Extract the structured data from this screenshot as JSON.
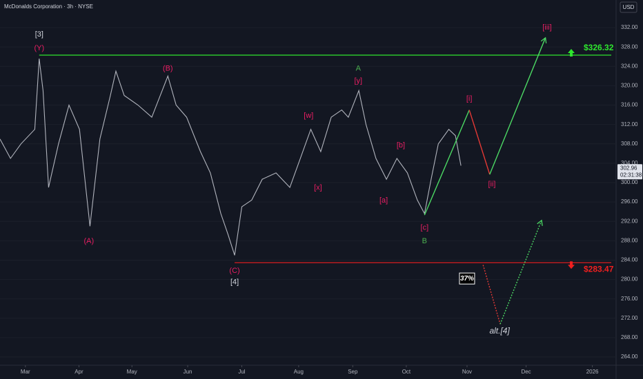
{
  "chart_data": {
    "type": "line",
    "title": "McDonalds Corporation · 3h · NYSE",
    "currency": "USD",
    "xlim": [
      2.54,
      13.7
    ],
    "xticks": [
      {
        "value": 3.0,
        "label": "Mar"
      },
      {
        "value": 3.97,
        "label": "Apr"
      },
      {
        "value": 4.93,
        "label": "May"
      },
      {
        "value": 5.94,
        "label": "Jun"
      },
      {
        "value": 6.92,
        "label": "Jul"
      },
      {
        "value": 7.95,
        "label": "Aug"
      },
      {
        "value": 8.93,
        "label": "Sep"
      },
      {
        "value": 9.9,
        "label": "Oct"
      },
      {
        "value": 11.0,
        "label": "Nov"
      },
      {
        "value": 12.07,
        "label": "Dec"
      },
      {
        "value": 13.27,
        "label": "2026"
      }
    ],
    "ylim": [
      262.3,
      337.7
    ],
    "yticks": [
      {
        "value": 264,
        "label": "264.00"
      },
      {
        "value": 268,
        "label": "268.00"
      },
      {
        "value": 272,
        "label": "272.00"
      },
      {
        "value": 276,
        "label": "276.00"
      },
      {
        "value": 280,
        "label": "280.00"
      },
      {
        "value": 284,
        "label": "284.00"
      },
      {
        "value": 288,
        "label": "288.00"
      },
      {
        "value": 292,
        "label": "292.00"
      },
      {
        "value": 296,
        "label": "296.00"
      },
      {
        "value": 300,
        "label": "300.00"
      },
      {
        "value": 304,
        "label": "304.00"
      },
      {
        "value": 308,
        "label": "308.00"
      },
      {
        "value": 312,
        "label": "312.00"
      },
      {
        "value": 316,
        "label": "316.00"
      },
      {
        "value": 320,
        "label": "320.00"
      },
      {
        "value": 324,
        "label": "324.00"
      },
      {
        "value": 328,
        "label": "328.00"
      },
      {
        "value": 332,
        "label": "332.00"
      }
    ],
    "series": [
      {
        "color": "#b2b5be",
        "style": "solid",
        "arrow": false,
        "x": [
          2.54,
          2.73,
          2.92,
          3.17,
          3.25,
          3.32,
          3.42,
          3.6,
          3.79,
          3.98,
          4.17,
          4.35,
          4.54,
          4.64,
          4.79,
          5.04,
          5.29,
          5.58,
          5.73,
          5.92,
          6.17,
          6.35,
          6.54,
          6.67,
          6.79,
          6.92,
          7.1,
          7.29,
          7.54,
          7.79,
          7.98,
          8.17,
          8.35,
          8.54,
          8.73,
          8.85,
          9.04,
          9.17,
          9.35,
          9.54,
          9.73,
          9.92,
          10.1,
          10.23,
          10.35,
          10.48,
          10.67,
          10.79,
          10.89
        ],
        "values": [
          309,
          305,
          308,
          311,
          325.6,
          319,
          299,
          308,
          316,
          311,
          291,
          309,
          318,
          323,
          318,
          316,
          313.5,
          322,
          316,
          313.5,
          306.4,
          302,
          293.6,
          289.3,
          285,
          295,
          296.4,
          300.7,
          302,
          299,
          305,
          311,
          306.4,
          313.5,
          315,
          313.5,
          319,
          312,
          305,
          300.7,
          305,
          302,
          296.4,
          293.6,
          300.7,
          308,
          311,
          309.7,
          303.5
        ]
      },
      {
        "color": "#4cd964",
        "style": "solid",
        "arrow": false,
        "x": [
          10.23,
          11.04
        ],
        "values": [
          293.3,
          315
        ]
      },
      {
        "color": "#e53935",
        "style": "solid",
        "arrow": false,
        "x": [
          11.04,
          11.41
        ],
        "values": [
          315,
          301.7
        ]
      },
      {
        "color": "#4cd964",
        "style": "solid",
        "arrow": true,
        "x": [
          11.41,
          12.42
        ],
        "values": [
          301.7,
          329.9
        ]
      },
      {
        "color": "#e53935",
        "style": "dotted",
        "arrow": false,
        "x": [
          11.29,
          11.6
        ],
        "values": [
          283,
          270.8
        ]
      },
      {
        "color": "#4cd964",
        "style": "dotted",
        "arrow": true,
        "x": [
          11.6,
          12.35
        ],
        "values": [
          270.8,
          292.2
        ]
      }
    ],
    "levels": [
      {
        "value": 326.32,
        "label": "$326.32",
        "color": "#2ee62e",
        "from": 3.25
      },
      {
        "value": 283.47,
        "label": "$283.47",
        "color": "#f01f1f",
        "from": 6.79
      }
    ],
    "annotations": [
      {
        "text": "[3]",
        "color": "#d1d4dc",
        "x": 3.25,
        "y": 330.6
      },
      {
        "text": "(Y)",
        "color": "#e91e63",
        "x": 3.25,
        "y": 327.7
      },
      {
        "text": "(B)",
        "color": "#e91e63",
        "x": 5.58,
        "y": 323.5
      },
      {
        "text": "(A)",
        "color": "#e91e63",
        "x": 4.15,
        "y": 287.9
      },
      {
        "text": "(C)",
        "color": "#e91e63",
        "x": 6.79,
        "y": 281.8
      },
      {
        "text": "[4]",
        "color": "#d1d4dc",
        "x": 6.79,
        "y": 279.4
      },
      {
        "text": "A",
        "color": "#4caf50",
        "x": 9.03,
        "y": 323.5
      },
      {
        "text": "[y]",
        "color": "#e91e63",
        "x": 9.03,
        "y": 321
      },
      {
        "text": "[w]",
        "color": "#e91e63",
        "x": 8.13,
        "y": 313.8
      },
      {
        "text": "[x]",
        "color": "#e91e63",
        "x": 8.3,
        "y": 298.9
      },
      {
        "text": "[a]",
        "color": "#e91e63",
        "x": 9.49,
        "y": 296.3
      },
      {
        "text": "[b]",
        "color": "#e91e63",
        "x": 9.8,
        "y": 307.7
      },
      {
        "text": "[c]",
        "color": "#e91e63",
        "x": 10.23,
        "y": 290.7
      },
      {
        "text": "B",
        "color": "#4caf50",
        "x": 10.23,
        "y": 287.9
      },
      {
        "text": "[i]",
        "color": "#e91e63",
        "x": 11.04,
        "y": 317.3
      },
      {
        "text": "[ii]",
        "color": "#e91e63",
        "x": 11.45,
        "y": 299.6
      },
      {
        "text": "[iii]",
        "color": "#e91e63",
        "x": 12.45,
        "y": 332
      },
      {
        "text": "alt.[4]",
        "color": "#d1d4dc",
        "x": 11.59,
        "y": 269.3
      }
    ],
    "probability": {
      "value": 37,
      "label": "37%",
      "x": 11.0,
      "y": 280.2
    },
    "last_price": 302.96,
    "countdown": "02:31:38"
  }
}
